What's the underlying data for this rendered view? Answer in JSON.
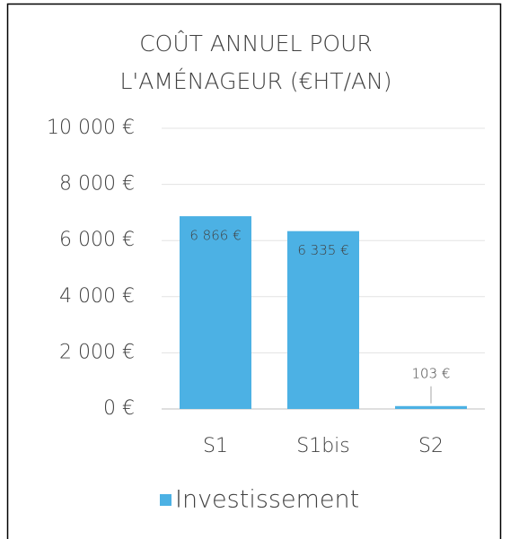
{
  "chart_data": {
    "type": "bar",
    "title": [
      "COÛT ANNUEL POUR",
      "L'AMÉNAGEUR (€HT/AN)"
    ],
    "categories": [
      "S1",
      "S1bis",
      "S2"
    ],
    "series": [
      {
        "name": "Investissement",
        "color": "#4cb1e4",
        "values": [
          6866,
          6335,
          103
        ],
        "value_labels": [
          "6 866 €",
          "6 335 €",
          "103 €"
        ]
      }
    ],
    "ylim": [
      0,
      10000
    ],
    "yticks": [
      {
        "value": 0,
        "label": "0 €"
      },
      {
        "value": 2000,
        "label": "2 000 €"
      },
      {
        "value": 4000,
        "label": "4 000 €"
      },
      {
        "value": 6000,
        "label": "6 000 €"
      },
      {
        "value": 8000,
        "label": "8 000 €"
      },
      {
        "value": 10000,
        "label": "10 000 €"
      }
    ],
    "grid": true,
    "legend": "bottom"
  }
}
